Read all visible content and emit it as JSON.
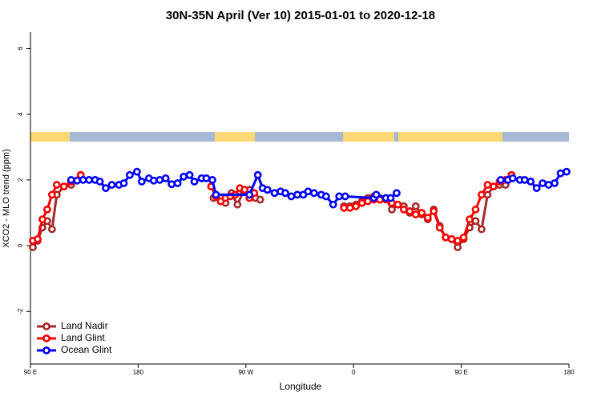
{
  "chart_data": {
    "type": "line",
    "title": "30N-35N April (Ver 10)   2015-01-01 to 2020-12-18",
    "x_label": "Longitude",
    "y_label": "XCO2 - MLO trend (ppm)",
    "xlim": [
      90,
      540
    ],
    "ylim": [
      -3.6,
      6.5
    ],
    "xticks": [
      {
        "value": 90,
        "label": "90 E"
      },
      180,
      {
        "value": 270,
        "label": "90 W"
      },
      {
        "value": 360,
        "label": "0"
      },
      {
        "value": 450,
        "label": "90 E"
      },
      {
        "value": 540,
        "label": "180"
      }
    ],
    "yticks": [
      -2,
      0,
      2,
      4,
      6
    ],
    "legend": "bottom-left",
    "series": [
      {
        "name": "Land Nadir",
        "color": "#a52a2a",
        "x": [
          92,
          96,
          100,
          104,
          108,
          112,
          118,
          124,
          132,
          200,
          243,
          249,
          253,
          258,
          263,
          268,
          273,
          278,
          282,
          320,
          352,
          357,
          362,
          367,
          372,
          377,
          382,
          387,
          392,
          397,
          402,
          407,
          412,
          417,
          422,
          427,
          432,
          437,
          442,
          447,
          452,
          457,
          462,
          467,
          472,
          477,
          482,
          487,
          492
        ],
        "values": [
          -0.05,
          0.15,
          0.55,
          0.75,
          0.5,
          1.55,
          1.8,
          1.85,
          2.15,
          null,
          1.45,
          1.35,
          1.3,
          1.6,
          1.25,
          1.65,
          1.7,
          1.45,
          1.4,
          null,
          1.2,
          1.2,
          1.25,
          1.35,
          1.45,
          1.5,
          1.45,
          1.45,
          1.1,
          1.25,
          1.2,
          1.0,
          1.2,
          0.95,
          0.8,
          1.1,
          0.6,
          0.25,
          0.2,
          -0.05,
          0.2,
          0.55,
          0.75,
          0.5,
          1.55,
          1.8,
          1.85,
          1.85,
          2.15
        ]
      },
      {
        "name": "Land Glint",
        "color": "#ff0000",
        "x": [
          92,
          96,
          100,
          104,
          108,
          112,
          118,
          124,
          132,
          200,
          241,
          245,
          249,
          253,
          257,
          261,
          265,
          269,
          273,
          277,
          320,
          352,
          357,
          362,
          367,
          372,
          377,
          382,
          387,
          392,
          397,
          402,
          407,
          412,
          417,
          422,
          427,
          432,
          437,
          442,
          447,
          452,
          457,
          462,
          467,
          472,
          477,
          482,
          487,
          492
        ],
        "values": [
          0.15,
          0.2,
          0.8,
          1.1,
          1.55,
          1.85,
          1.8,
          1.95,
          2.15,
          null,
          1.8,
          1.5,
          1.35,
          1.45,
          1.5,
          1.55,
          1.75,
          1.7,
          1.45,
          1.6,
          null,
          1.15,
          1.15,
          1.2,
          1.3,
          1.35,
          1.4,
          1.4,
          1.4,
          1.3,
          1.25,
          1.1,
          1.05,
          0.95,
          1.0,
          0.85,
          1.05,
          0.55,
          0.25,
          0.2,
          0.15,
          0.25,
          0.8,
          1.1,
          1.55,
          1.85,
          1.8,
          1.95,
          2.0,
          2.15
        ]
      },
      {
        "name": "Ocean Glint",
        "color": "#0000ff",
        "x": [
          124,
          129,
          134,
          139,
          144,
          148,
          153,
          158,
          164,
          168,
          173,
          179,
          183,
          189,
          193,
          198,
          203,
          208,
          213,
          218,
          223,
          227,
          233,
          237,
          242,
          245,
          273,
          280,
          284,
          288,
          294,
          299,
          303,
          308,
          313,
          318,
          322,
          327,
          333,
          337,
          343,
          348,
          353,
          377,
          379,
          387,
          391,
          396,
          440,
          483,
          489,
          493,
          499,
          503,
          508,
          513,
          518,
          523,
          528,
          533,
          538
        ],
        "values": [
          2.0,
          1.98,
          2.0,
          2.0,
          2.0,
          1.95,
          1.75,
          1.85,
          1.85,
          1.9,
          2.15,
          2.25,
          1.95,
          2.05,
          1.98,
          2.0,
          2.05,
          1.87,
          1.9,
          2.1,
          2.15,
          1.95,
          2.05,
          2.05,
          2.0,
          1.55,
          1.55,
          2.15,
          1.75,
          1.7,
          1.6,
          1.65,
          1.6,
          1.5,
          1.55,
          1.55,
          1.65,
          1.6,
          1.55,
          1.5,
          1.25,
          1.5,
          1.5,
          1.45,
          1.55,
          1.45,
          1.45,
          1.6,
          null,
          2.0,
          2.0,
          2.05,
          2.0,
          2.0,
          1.95,
          1.75,
          1.9,
          1.85,
          1.9,
          2.2,
          2.25
        ]
      }
    ]
  }
}
